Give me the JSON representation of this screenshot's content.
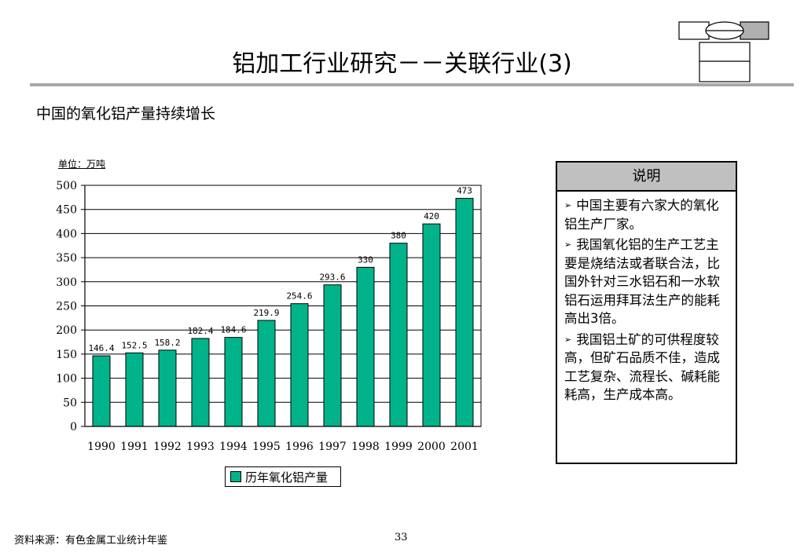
{
  "slide": {
    "title": "铝加工行业研究－－关联行业(3)",
    "subtitle": "中国的氧化铝产量持续增长",
    "source": "资料来源：有色金属工业统计年鉴",
    "page_number": "33"
  },
  "notes": {
    "header": "说明",
    "items": [
      {
        "label": "中国主要有六家大的氧化铝生产厂家。"
      },
      {
        "label": "我国氧化铝的生产工艺主要是烧结法或者联合法，比国外针对三水铝石和一水软铝石运用拜耳法生产的能耗高出3倍。"
      },
      {
        "label": "我国铝土矿的可供程度较高，但矿石品质不佳，造成工艺复杂、流程长、碱耗能耗高，生产成本高。"
      }
    ]
  },
  "colors": {
    "bar": "#00b38a",
    "title_rule": "#a8a8a8",
    "notes_header_bg": "#c0c0c0",
    "logo_gray": "#b0b0b0"
  },
  "chart_data": {
    "type": "bar",
    "unit_label": "单位：万吨",
    "categories": [
      "1990",
      "1991",
      "1992",
      "1993",
      "1994",
      "1995",
      "1996",
      "1997",
      "1998",
      "1999",
      "2000",
      "2001"
    ],
    "series": [
      {
        "name": "历年氧化铝产量",
        "values": [
          146.4,
          152.5,
          158.2,
          182.4,
          184.6,
          219.9,
          254.6,
          293.6,
          330,
          380,
          420,
          473
        ]
      }
    ],
    "data_labels": [
      "146.4",
      "152.5",
      "158.2",
      "182.4",
      "184.6",
      "219.9",
      "254.6",
      "293.6",
      "330",
      "380",
      "420",
      "473"
    ],
    "ylim": [
      0,
      500
    ],
    "yticks": [
      0,
      50,
      100,
      150,
      200,
      250,
      300,
      350,
      400,
      450,
      500
    ],
    "grid": true,
    "legend_position": "bottom"
  }
}
